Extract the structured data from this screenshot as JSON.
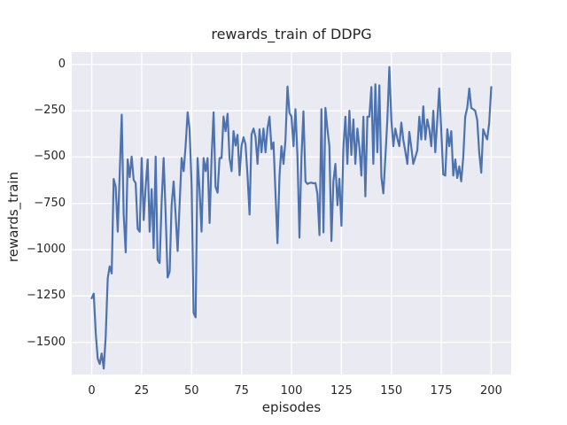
{
  "figure": {
    "background_color": "#ffffff"
  },
  "chart_data": {
    "type": "line",
    "title": "rewards_train of DDPG",
    "xlabel": "episodes",
    "ylabel": "rewards_train",
    "series_name": "rewards_train",
    "line_color": "#4c72b0",
    "axes_background": "#eaeaf2",
    "grid_color": "#ffffff",
    "text_color": "#262626",
    "grid": true,
    "legend": false,
    "xlim": [
      -10,
      210
    ],
    "ylim": [
      -1674,
      66
    ],
    "xticks": [
      0,
      25,
      50,
      75,
      100,
      125,
      150,
      175,
      200
    ],
    "yticks": [
      0,
      -250,
      -500,
      -750,
      -1000,
      -1250,
      -1500
    ],
    "x_tick_labels": [
      "0",
      "25",
      "50",
      "75",
      "100",
      "125",
      "150",
      "175",
      "200"
    ],
    "y_tick_labels": [
      "0",
      "−250",
      "−500",
      "−750",
      "−1000",
      "−1250",
      "−1500"
    ],
    "x_start": 0,
    "x_step": 1,
    "y": [
      -1262,
      -1237,
      -1452,
      -1588,
      -1617,
      -1560,
      -1642,
      -1470,
      -1155,
      -1090,
      -1128,
      -618,
      -660,
      -903,
      -590,
      -271,
      -810,
      -1015,
      -513,
      -608,
      -497,
      -624,
      -640,
      -887,
      -903,
      -505,
      -840,
      -660,
      -513,
      -903,
      -673,
      -991,
      -497,
      -1055,
      -1072,
      -736,
      -505,
      -810,
      -1150,
      -1118,
      -760,
      -632,
      -808,
      -1007,
      -760,
      -505,
      -576,
      -440,
      -258,
      -351,
      -653,
      -1341,
      -1365,
      -505,
      -682,
      -903,
      -505,
      -576,
      -505,
      -856,
      -505,
      -258,
      -660,
      -692,
      -505,
      -505,
      -281,
      -360,
      -266,
      -505,
      -576,
      -360,
      -438,
      -380,
      -598,
      -440,
      -393,
      -430,
      -600,
      -810,
      -378,
      -346,
      -390,
      -537,
      -350,
      -474,
      -346,
      -474,
      -346,
      -282,
      -457,
      -420,
      -700,
      -965,
      -600,
      -441,
      -537,
      -409,
      -119,
      -260,
      -282,
      -441,
      -242,
      -500,
      -935,
      -500,
      -253,
      -632,
      -645,
      -640,
      -638,
      -642,
      -640,
      -700,
      -921,
      -242,
      -907,
      -234,
      -350,
      -441,
      -953,
      -632,
      -537,
      -760,
      -617,
      -871,
      -450,
      -282,
      -537,
      -250,
      -489,
      -297,
      -537,
      -346,
      -450,
      -600,
      -282,
      -712,
      -282,
      -282,
      -122,
      -537,
      -107,
      -474,
      -113,
      -610,
      -696,
      -500,
      -300,
      -14,
      -297,
      -441,
      -346,
      -400,
      -441,
      -314,
      -409,
      -470,
      -537,
      -364,
      -450,
      -537,
      -500,
      -465,
      -282,
      -405,
      -226,
      -405,
      -297,
      -350,
      -441,
      -250,
      -474,
      -300,
      -130,
      -360,
      -593,
      -600,
      -350,
      -441,
      -360,
      -600,
      -513,
      -613,
      -550,
      -631,
      -500,
      -282,
      -234,
      -130,
      -234,
      -242,
      -250,
      -300,
      -474,
      -584,
      -350,
      -380,
      -405,
      -314,
      -122
    ]
  }
}
